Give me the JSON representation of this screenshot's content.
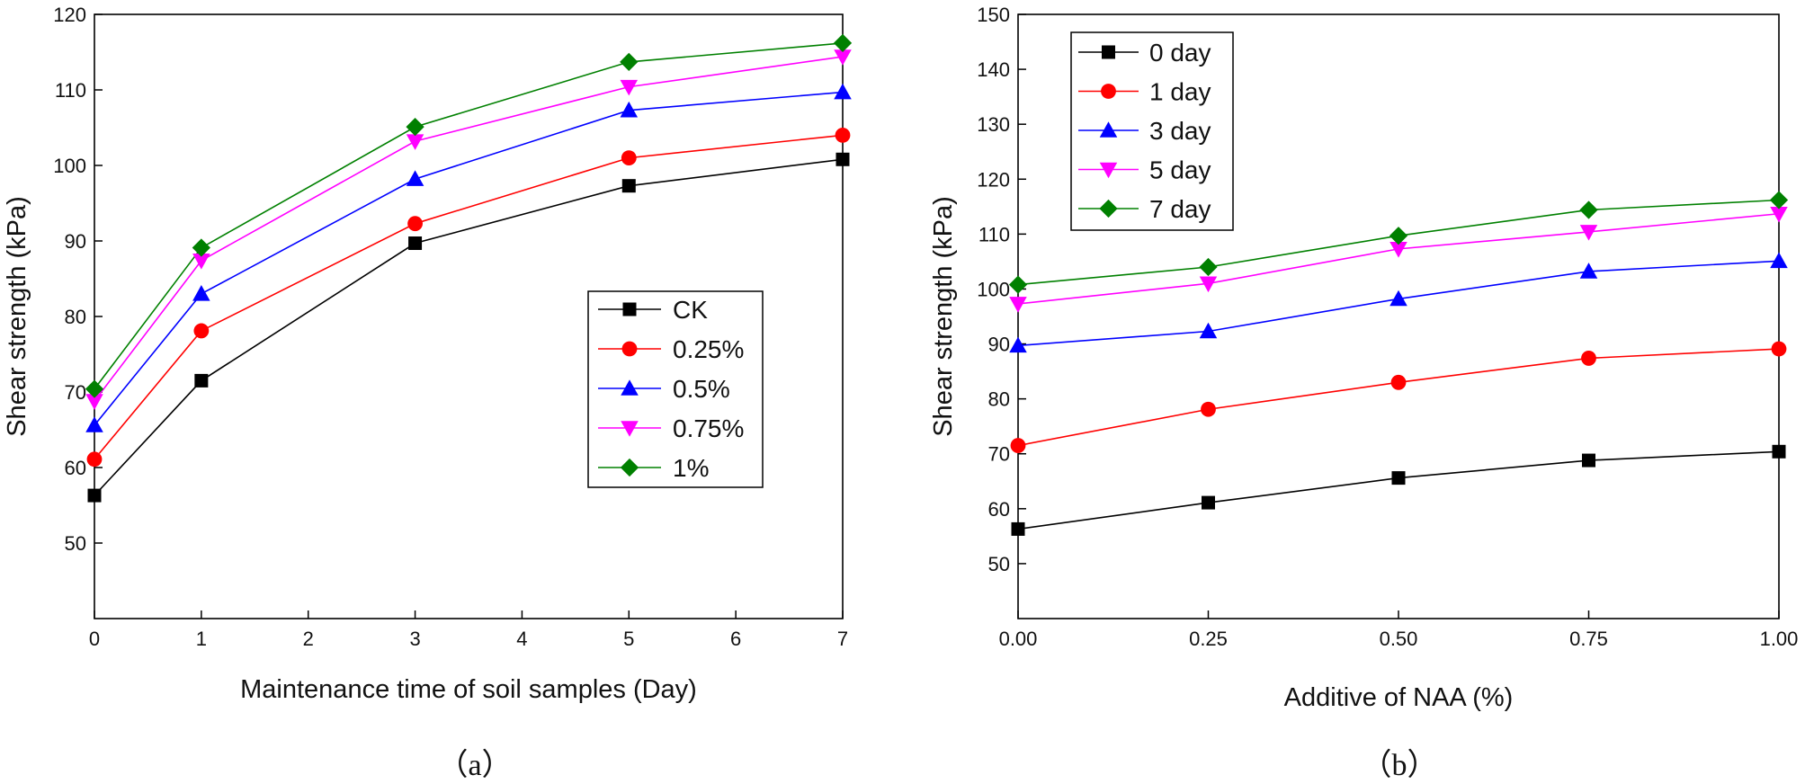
{
  "chart_data": [
    {
      "type": "line",
      "caption": "（a）",
      "xlabel": "Maintenance time of soil samples (Day)",
      "ylabel": "Shear strength (kPa)",
      "xlim": [
        0,
        7
      ],
      "ylim": [
        40,
        120
      ],
      "xticks": [
        "0",
        "1",
        "2",
        "3",
        "4",
        "5",
        "6",
        "7"
      ],
      "yticks": [
        "50",
        "60",
        "70",
        "80",
        "90",
        "100",
        "110",
        "120"
      ],
      "legend_position": "center-right",
      "x": [
        0,
        1,
        3,
        5,
        7
      ],
      "series": [
        {
          "name": "CK",
          "marker": "square",
          "color": "#000000",
          "values": [
            56.3,
            71.5,
            89.7,
            97.3,
            100.8
          ]
        },
        {
          "name": "0.25%",
          "marker": "circle",
          "color": "#ff0000",
          "values": [
            61.1,
            78.1,
            92.3,
            101.0,
            104.0
          ]
        },
        {
          "name": "0.5%",
          "marker": "triangle-up",
          "color": "#0000ff",
          "values": [
            65.6,
            83.0,
            98.2,
            107.3,
            109.7
          ]
        },
        {
          "name": "0.75%",
          "marker": "triangle-down",
          "color": "#ff00ff",
          "values": [
            68.8,
            87.4,
            103.2,
            110.4,
            114.4
          ]
        },
        {
          "name": "1%",
          "marker": "diamond",
          "color": "#008000",
          "values": [
            70.4,
            89.1,
            105.1,
            113.7,
            116.2
          ]
        }
      ]
    },
    {
      "type": "line",
      "caption": "（b）",
      "xlabel": "Additive of NAA (%)",
      "ylabel": "Shear strength (kPa)",
      "xlim": [
        0,
        1
      ],
      "ylim": [
        40,
        150
      ],
      "xticks": [
        "0.00",
        "0.25",
        "0.50",
        "0.75",
        "1.00"
      ],
      "yticks": [
        "50",
        "60",
        "70",
        "80",
        "90",
        "100",
        "110",
        "120",
        "130",
        "140",
        "150"
      ],
      "legend_position": "top-left",
      "x": [
        0,
        0.25,
        0.5,
        0.75,
        1.0
      ],
      "series": [
        {
          "name": "0 day",
          "marker": "square",
          "color": "#000000",
          "values": [
            56.3,
            61.1,
            65.6,
            68.8,
            70.4
          ]
        },
        {
          "name": "1 day",
          "marker": "circle",
          "color": "#ff0000",
          "values": [
            71.5,
            78.1,
            83.0,
            87.4,
            89.1
          ]
        },
        {
          "name": "3 day",
          "marker": "triangle-up",
          "color": "#0000ff",
          "values": [
            89.7,
            92.3,
            98.2,
            103.2,
            105.1
          ]
        },
        {
          "name": "5 day",
          "marker": "triangle-down",
          "color": "#ff00ff",
          "values": [
            97.3,
            101.0,
            107.3,
            110.4,
            113.7
          ]
        },
        {
          "name": "7 day",
          "marker": "diamond",
          "color": "#008000",
          "values": [
            100.8,
            104.0,
            109.7,
            114.4,
            116.2
          ]
        }
      ]
    }
  ]
}
